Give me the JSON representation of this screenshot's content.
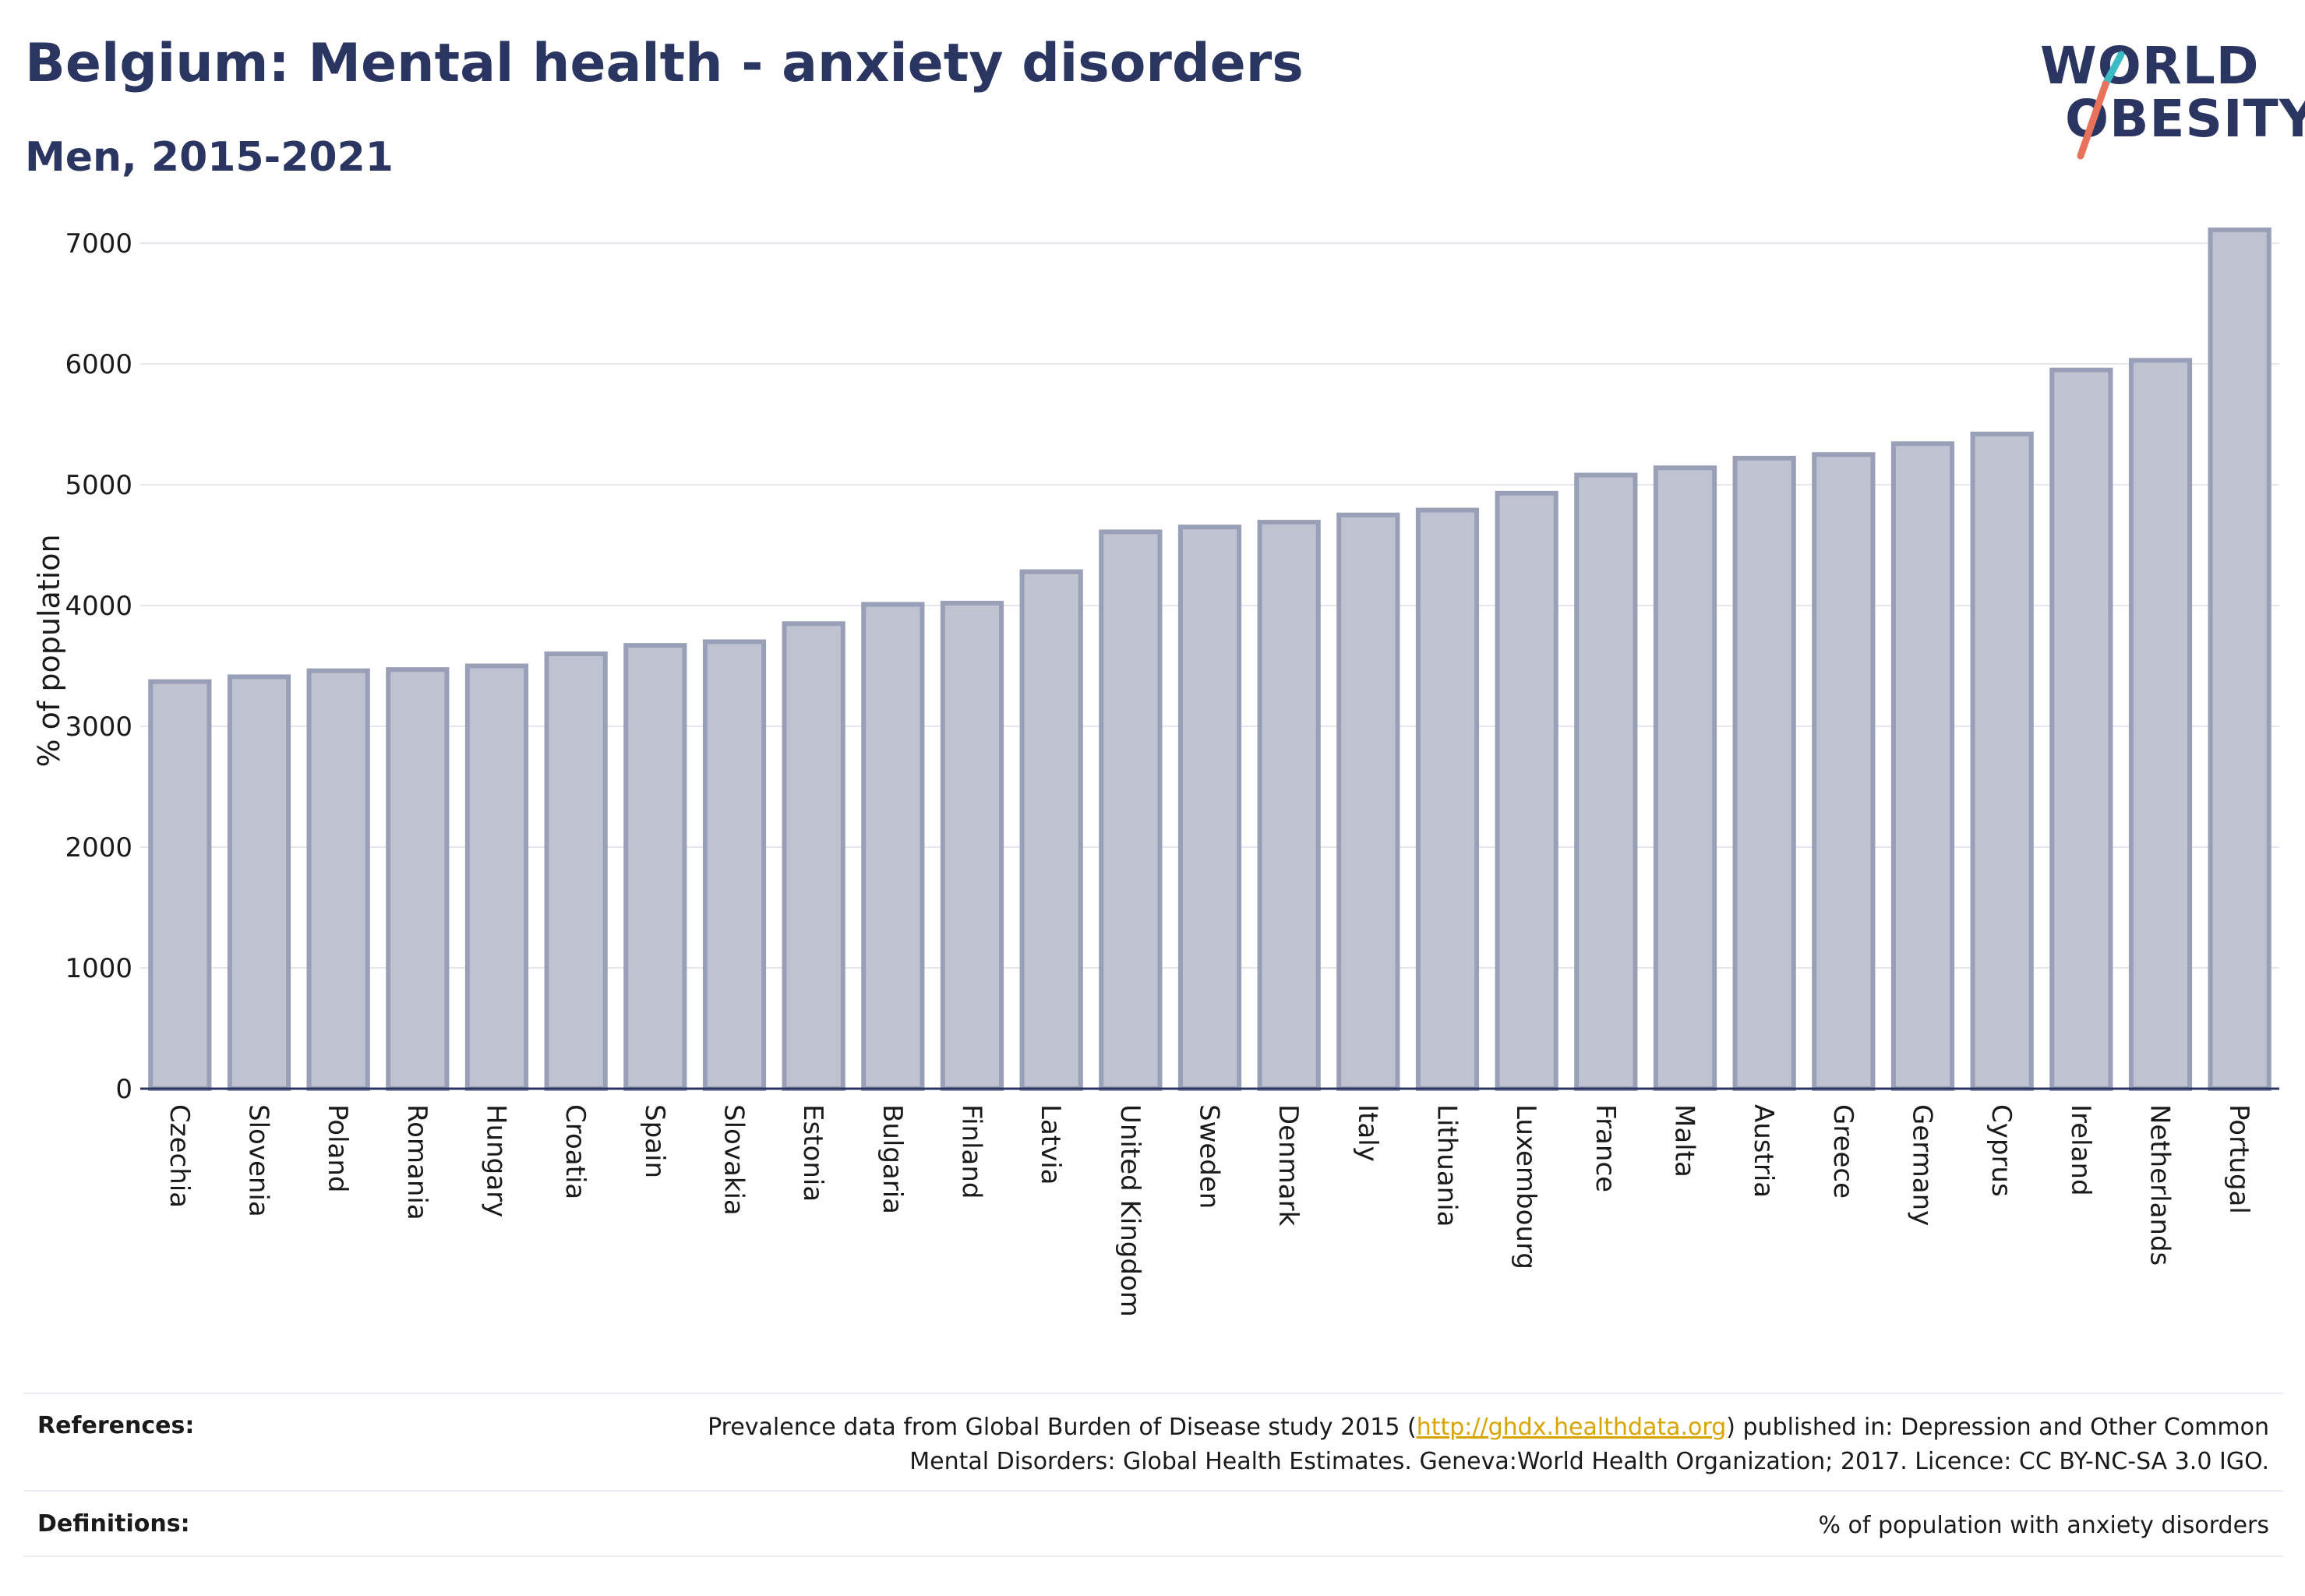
{
  "header": {
    "title": "Belgium: Mental health - anxiety disorders",
    "subtitle": "Men, 2015-2021"
  },
  "logo": {
    "line1": "WORLD",
    "line2": "OBESITY",
    "slash_colors": [
      "#3bbcc4",
      "#e8725c"
    ]
  },
  "chart_data": {
    "type": "bar",
    "title": "Belgium: Mental health - anxiety disorders",
    "subtitle": "Men, 2015-2021",
    "xlabel": "",
    "ylabel": "% of population",
    "ylim": [
      0,
      7400
    ],
    "yticks": [
      0,
      1000,
      2000,
      3000,
      4000,
      5000,
      6000,
      7000
    ],
    "grid": true,
    "bar_color": "#bfc2d1",
    "bar_edge_color": "#9a9fb8",
    "categories": [
      "Czechia",
      "Slovenia",
      "Poland",
      "Romania",
      "Hungary",
      "Croatia",
      "Spain",
      "Slovakia",
      "Estonia",
      "Bulgaria",
      "Finland",
      "Latvia",
      "United Kingdom",
      "Sweden",
      "Denmark",
      "Italy",
      "Lithuania",
      "Luxembourg",
      "France",
      "Malta",
      "Austria",
      "Greece",
      "Germany",
      "Cyprus",
      "Ireland",
      "Netherlands",
      "Portugal"
    ],
    "values": [
      3370,
      3410,
      3460,
      3470,
      3500,
      3600,
      3670,
      3700,
      3850,
      4010,
      4020,
      4280,
      4610,
      4650,
      4690,
      4750,
      4790,
      4930,
      5080,
      5140,
      5220,
      5250,
      5340,
      5420,
      5950,
      6030,
      7110
    ]
  },
  "footer": {
    "references_label": "References:",
    "references_text_before": "Prevalence data from Global Burden of Disease study 2015 (",
    "references_link": "http://ghdx.healthdata.org",
    "references_text_after": ") published in: Depression and Other Common",
    "references_line2": "Mental Disorders: Global Health Estimates. Geneva:World Health Organization; 2017. Licence: CC BY-NC-SA 3.0 IGO.",
    "definitions_label": "Definitions:",
    "definitions_text": "% of population with anxiety disorders"
  }
}
